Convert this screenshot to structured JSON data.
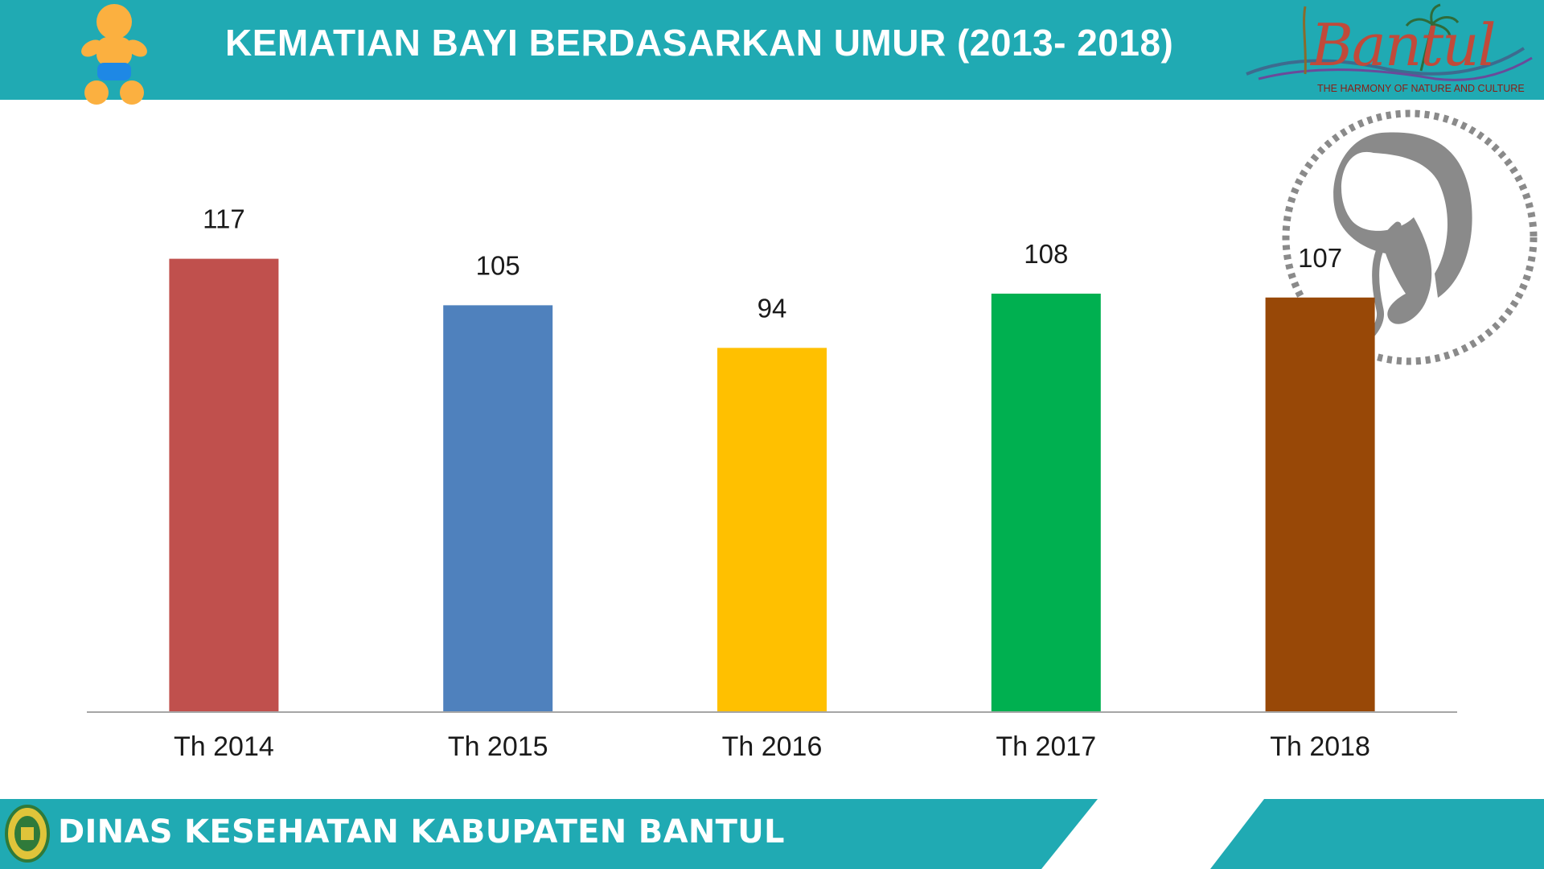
{
  "header": {
    "title": "KEMATIAN BAYI BERDASARKAN UMUR (2013- 2018)",
    "brand_name": "Bantul",
    "brand_tagline": "THE HARMONY OF NATURE AND CULTURE",
    "background_color": "#20aab3"
  },
  "footer": {
    "title": "DINAS KESEHATAN KABUPATEN BANTUL",
    "background_color": "#20aab3"
  },
  "icons": {
    "baby": "baby-icon",
    "fetus": "fetus-illustration",
    "emblem": "bantul-emblem-icon"
  },
  "chart_data": {
    "type": "bar",
    "categories": [
      "Th 2014",
      "Th 2015",
      "Th 2016",
      "Th 2017",
      "Th 2018"
    ],
    "values": [
      117,
      105,
      94,
      108,
      107
    ],
    "data_labels": [
      "117",
      "105",
      "94",
      "108",
      "107"
    ],
    "colors": [
      "#c0504d",
      "#4f81bd",
      "#ffc000",
      "#00b050",
      "#984807"
    ],
    "title": "",
    "xlabel": "",
    "ylabel": "",
    "ylim": [
      0,
      130
    ],
    "grid": false,
    "legend": "none"
  }
}
